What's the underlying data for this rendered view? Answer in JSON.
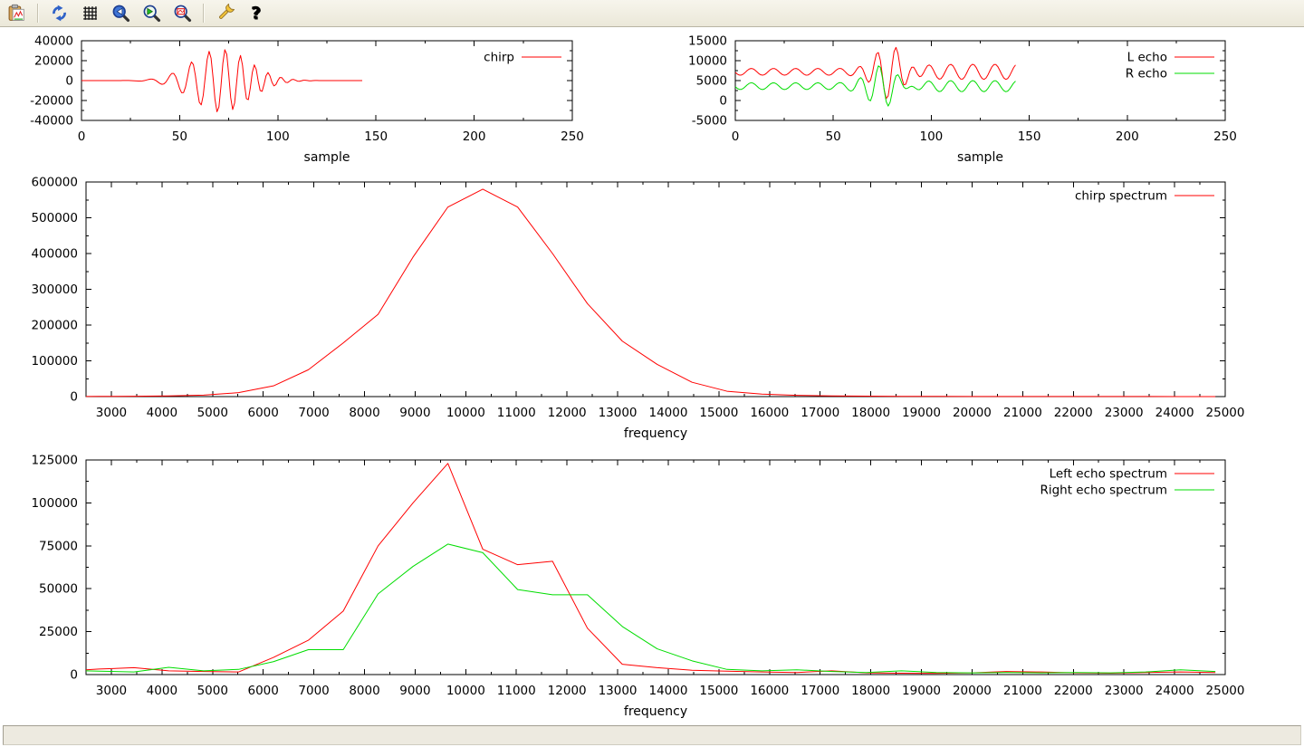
{
  "window": {
    "background": "#ffffff",
    "canvas_background": "#ffffff"
  },
  "toolbar": {
    "background": "#ebe8d9",
    "buttons": [
      {
        "name": "copy-to-clipboard",
        "icon": "clipboard-chart-icon"
      },
      {
        "name": "replot",
        "icon": "refresh-icon"
      },
      {
        "name": "toggle-grid",
        "icon": "grid-icon"
      },
      {
        "name": "zoom-previous",
        "icon": "magnifier-back-icon"
      },
      {
        "name": "zoom-next",
        "icon": "magnifier-forward-icon"
      },
      {
        "name": "apply-autoscale",
        "icon": "magnifier-fit-icon"
      },
      {
        "name": "configure-terminal",
        "icon": "wrench-icon"
      },
      {
        "name": "help",
        "icon": "help-icon"
      }
    ]
  },
  "status_bar": {
    "text": ""
  },
  "colors": {
    "red": "#ff0000",
    "green": "#00dd00",
    "axis": "#000000"
  },
  "chart_data": [
    {
      "id": "chirp",
      "type": "line",
      "title": "",
      "xlabel": "sample",
      "ylabel": "",
      "xlim": [
        0,
        250
      ],
      "ylim": [
        -40000,
        40000
      ],
      "xticks": {
        "start": 0,
        "step": 50,
        "end": 250,
        "minor_step": 25
      },
      "yticks": {
        "start": -40000,
        "step": 20000,
        "end": 40000,
        "minor_step": 10000
      },
      "grid": false,
      "legend_position": "top-right-inside",
      "series": [
        {
          "name": "chirp",
          "label": "chirp",
          "color": "#ff0000",
          "x_range": [
            0,
            143
          ],
          "note": "amplitude-modulated chirp burst, values estimated from pixels",
          "generator": {
            "kind": "am_chirp",
            "samples": 144,
            "amplitude": 32000,
            "envelope_center": 71,
            "envelope_sigma": 14.5,
            "f0": 0.045,
            "chirp_rate": 0.0011
          }
        }
      ]
    },
    {
      "id": "echoes",
      "type": "line",
      "title": "",
      "xlabel": "sample",
      "ylabel": "",
      "xlim": [
        0,
        250
      ],
      "ylim": [
        -5000,
        15000
      ],
      "xticks": {
        "start": 0,
        "step": 50,
        "end": 250,
        "minor_step": 25
      },
      "yticks": {
        "start": -5000,
        "step": 5000,
        "end": 15000,
        "minor_step": 2500
      },
      "grid": false,
      "legend_position": "top-right-inside",
      "series": [
        {
          "name": "l-echo",
          "label": "L echo",
          "color": "#ff0000",
          "x_range": [
            0,
            143
          ],
          "note": "DC offset ~7200 with ripple and chirp echo burst peaking ~14400 near sample 82, min ~500 near 77",
          "generator": {
            "kind": "echo",
            "samples": 144,
            "baseline": 7200,
            "ripple_amplitude": 850,
            "ripple_amplitude_late": 1900,
            "ripple_period": 11.3,
            "ripple_phase": 3.3,
            "amp_transition_sample": 88,
            "burst_amplitude": 7800,
            "burst_center": 79,
            "burst_sigma": 7.5,
            "burst_frequency": 0.102,
            "burst_phase_center": 82
          }
        },
        {
          "name": "r-echo",
          "label": "R echo",
          "color": "#00dd00",
          "x_range": [
            0,
            143
          ],
          "note": "DC offset ~3600 with ripple and chirp echo burst peaking ~8300 near sample 73, min ~-1800 near 78",
          "generator": {
            "kind": "echo",
            "samples": 144,
            "baseline": 3600,
            "ripple_amplitude": 850,
            "ripple_amplitude_late": 1400,
            "ripple_period": 11.3,
            "ripple_phase": 3.3,
            "amp_transition_sample": 88,
            "burst_amplitude": 5600,
            "burst_center": 76,
            "burst_sigma": 7.5,
            "burst_frequency": 0.102,
            "burst_phase_center": 73
          }
        }
      ]
    },
    {
      "id": "chirp_spectrum",
      "type": "line",
      "title": "",
      "xlabel": "frequency",
      "ylabel": "",
      "xlim": [
        2500,
        25000
      ],
      "ylim": [
        0,
        600000
      ],
      "xticks": {
        "start": 3000,
        "step": 1000,
        "end": 25000,
        "minor_step": 500
      },
      "yticks": {
        "start": 0,
        "step": 100000,
        "end": 600000,
        "minor_step": 50000
      },
      "grid": false,
      "legend_position": "top-right-inside",
      "series": [
        {
          "name": "chirp-spectrum",
          "label": "chirp spectrum",
          "color": "#ff0000",
          "points": [
            [
              2500,
              400
            ],
            [
              2756,
              500
            ],
            [
              3445,
              900
            ],
            [
              4134,
              1800
            ],
            [
              4823,
              4000
            ],
            [
              5512,
              11000
            ],
            [
              6202,
              30000
            ],
            [
              6891,
              75000
            ],
            [
              7580,
              150000
            ],
            [
              8269,
              230000
            ],
            [
              8958,
              390000
            ],
            [
              9647,
              530000
            ],
            [
              10336,
              580000
            ],
            [
              11025,
              530000
            ],
            [
              11714,
              400000
            ],
            [
              12403,
              260000
            ],
            [
              13092,
              155000
            ],
            [
              13781,
              90000
            ],
            [
              14470,
              40000
            ],
            [
              15159,
              15000
            ],
            [
              15848,
              7000
            ],
            [
              16538,
              3500
            ],
            [
              17227,
              2000
            ],
            [
              17916,
              1200
            ],
            [
              18605,
              700
            ],
            [
              19294,
              500
            ],
            [
              19983,
              400
            ],
            [
              20672,
              300
            ],
            [
              21361,
              300
            ],
            [
              22050,
              200
            ],
            [
              22739,
              200
            ],
            [
              23428,
              200
            ],
            [
              24117,
              100
            ],
            [
              24806,
              100
            ]
          ]
        }
      ]
    },
    {
      "id": "echo_spectra",
      "type": "line",
      "title": "",
      "xlabel": "frequency",
      "ylabel": "",
      "xlim": [
        2500,
        25000
      ],
      "ylim": [
        0,
        125000
      ],
      "xticks": {
        "start": 3000,
        "step": 1000,
        "end": 25000,
        "minor_step": 500
      },
      "yticks": {
        "start": 0,
        "step": 25000,
        "end": 125000,
        "minor_step": 12500
      },
      "grid": false,
      "legend_position": "top-right-inside",
      "series": [
        {
          "name": "left-echo-spectrum",
          "label": "Left echo spectrum",
          "color": "#ff0000",
          "points": [
            [
              2500,
              2800
            ],
            [
              2756,
              3200
            ],
            [
              3445,
              4000
            ],
            [
              4134,
              2200
            ],
            [
              4823,
              1800
            ],
            [
              5512,
              1500
            ],
            [
              6202,
              10000
            ],
            [
              6891,
              20000
            ],
            [
              7580,
              37000
            ],
            [
              8269,
              75000
            ],
            [
              8958,
              100000
            ],
            [
              9647,
              123000
            ],
            [
              10336,
              73000
            ],
            [
              11025,
              64000
            ],
            [
              11714,
              66000
            ],
            [
              12403,
              27000
            ],
            [
              13092,
              6000
            ],
            [
              13781,
              4000
            ],
            [
              14470,
              2500
            ],
            [
              15159,
              2000
            ],
            [
              15848,
              1500
            ],
            [
              16538,
              1200
            ],
            [
              17227,
              2200
            ],
            [
              17916,
              1000
            ],
            [
              18605,
              800
            ],
            [
              19294,
              700
            ],
            [
              19983,
              1000
            ],
            [
              20672,
              1800
            ],
            [
              21361,
              1500
            ],
            [
              22050,
              1000
            ],
            [
              22739,
              800
            ],
            [
              23428,
              1200
            ],
            [
              24117,
              1500
            ],
            [
              24806,
              1200
            ]
          ]
        },
        {
          "name": "right-echo-spectrum",
          "label": "Right echo spectrum",
          "color": "#00dd00",
          "points": [
            [
              2500,
              2200
            ],
            [
              2756,
              2000
            ],
            [
              3445,
              1500
            ],
            [
              4134,
              4200
            ],
            [
              4823,
              2200
            ],
            [
              5512,
              3000
            ],
            [
              6202,
              7500
            ],
            [
              6891,
              14500
            ],
            [
              7580,
              14500
            ],
            [
              8269,
              47000
            ],
            [
              8958,
              63000
            ],
            [
              9647,
              76000
            ],
            [
              10336,
              71000
            ],
            [
              11025,
              49500
            ],
            [
              11714,
              46500
            ],
            [
              12403,
              46500
            ],
            [
              13092,
              28000
            ],
            [
              13781,
              15000
            ],
            [
              14470,
              8000
            ],
            [
              15159,
              3000
            ],
            [
              15848,
              2200
            ],
            [
              16538,
              2800
            ],
            [
              17227,
              1800
            ],
            [
              17916,
              1200
            ],
            [
              18605,
              2200
            ],
            [
              19294,
              1200
            ],
            [
              19983,
              1000
            ],
            [
              20672,
              1200
            ],
            [
              21361,
              1000
            ],
            [
              22050,
              1200
            ],
            [
              22739,
              1000
            ],
            [
              23428,
              1500
            ],
            [
              24117,
              2800
            ],
            [
              24806,
              1800
            ]
          ]
        }
      ]
    }
  ]
}
